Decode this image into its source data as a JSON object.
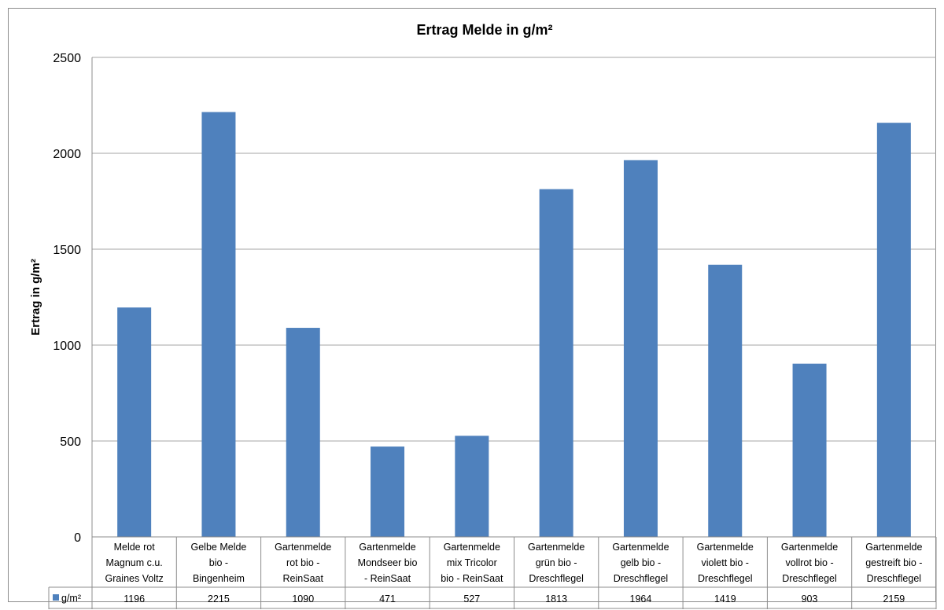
{
  "chart_data": {
    "type": "bar",
    "title": "Ertrag Melde in g/m²",
    "ylabel": "Ertrag in g/m²",
    "xlabel": "",
    "ylim": [
      0,
      2500
    ],
    "yticks": [
      0,
      500,
      1000,
      1500,
      2000,
      2500
    ],
    "grid": true,
    "data_table": true,
    "bar_color": "#4f81bd",
    "categories": [
      [
        "Melde rot",
        "Magnum c.u.",
        "Graines Voltz"
      ],
      [
        "Gelbe Melde",
        "bio -",
        "Bingenheim"
      ],
      [
        "Gartenmelde",
        "rot bio -",
        "ReinSaat"
      ],
      [
        "Gartenmelde",
        "Mondseer bio",
        "- ReinSaat"
      ],
      [
        "Gartenmelde",
        "mix Tricolor",
        "bio - ReinSaat"
      ],
      [
        "Gartenmelde",
        "grün bio -",
        "Dreschflegel"
      ],
      [
        "Gartenmelde",
        "gelb bio -",
        "Dreschflegel"
      ],
      [
        "Gartenmelde",
        "violett bio -",
        "Dreschflegel"
      ],
      [
        "Gartenmelde",
        "vollrot bio -",
        "Dreschflegel"
      ],
      [
        "Gartenmelde",
        "gestreift bio -",
        "Dreschflegel"
      ]
    ],
    "series": [
      {
        "name": "g/m²",
        "values": [
          1196,
          2215,
          1090,
          471,
          527,
          1813,
          1964,
          1419,
          903,
          2159
        ]
      }
    ]
  }
}
